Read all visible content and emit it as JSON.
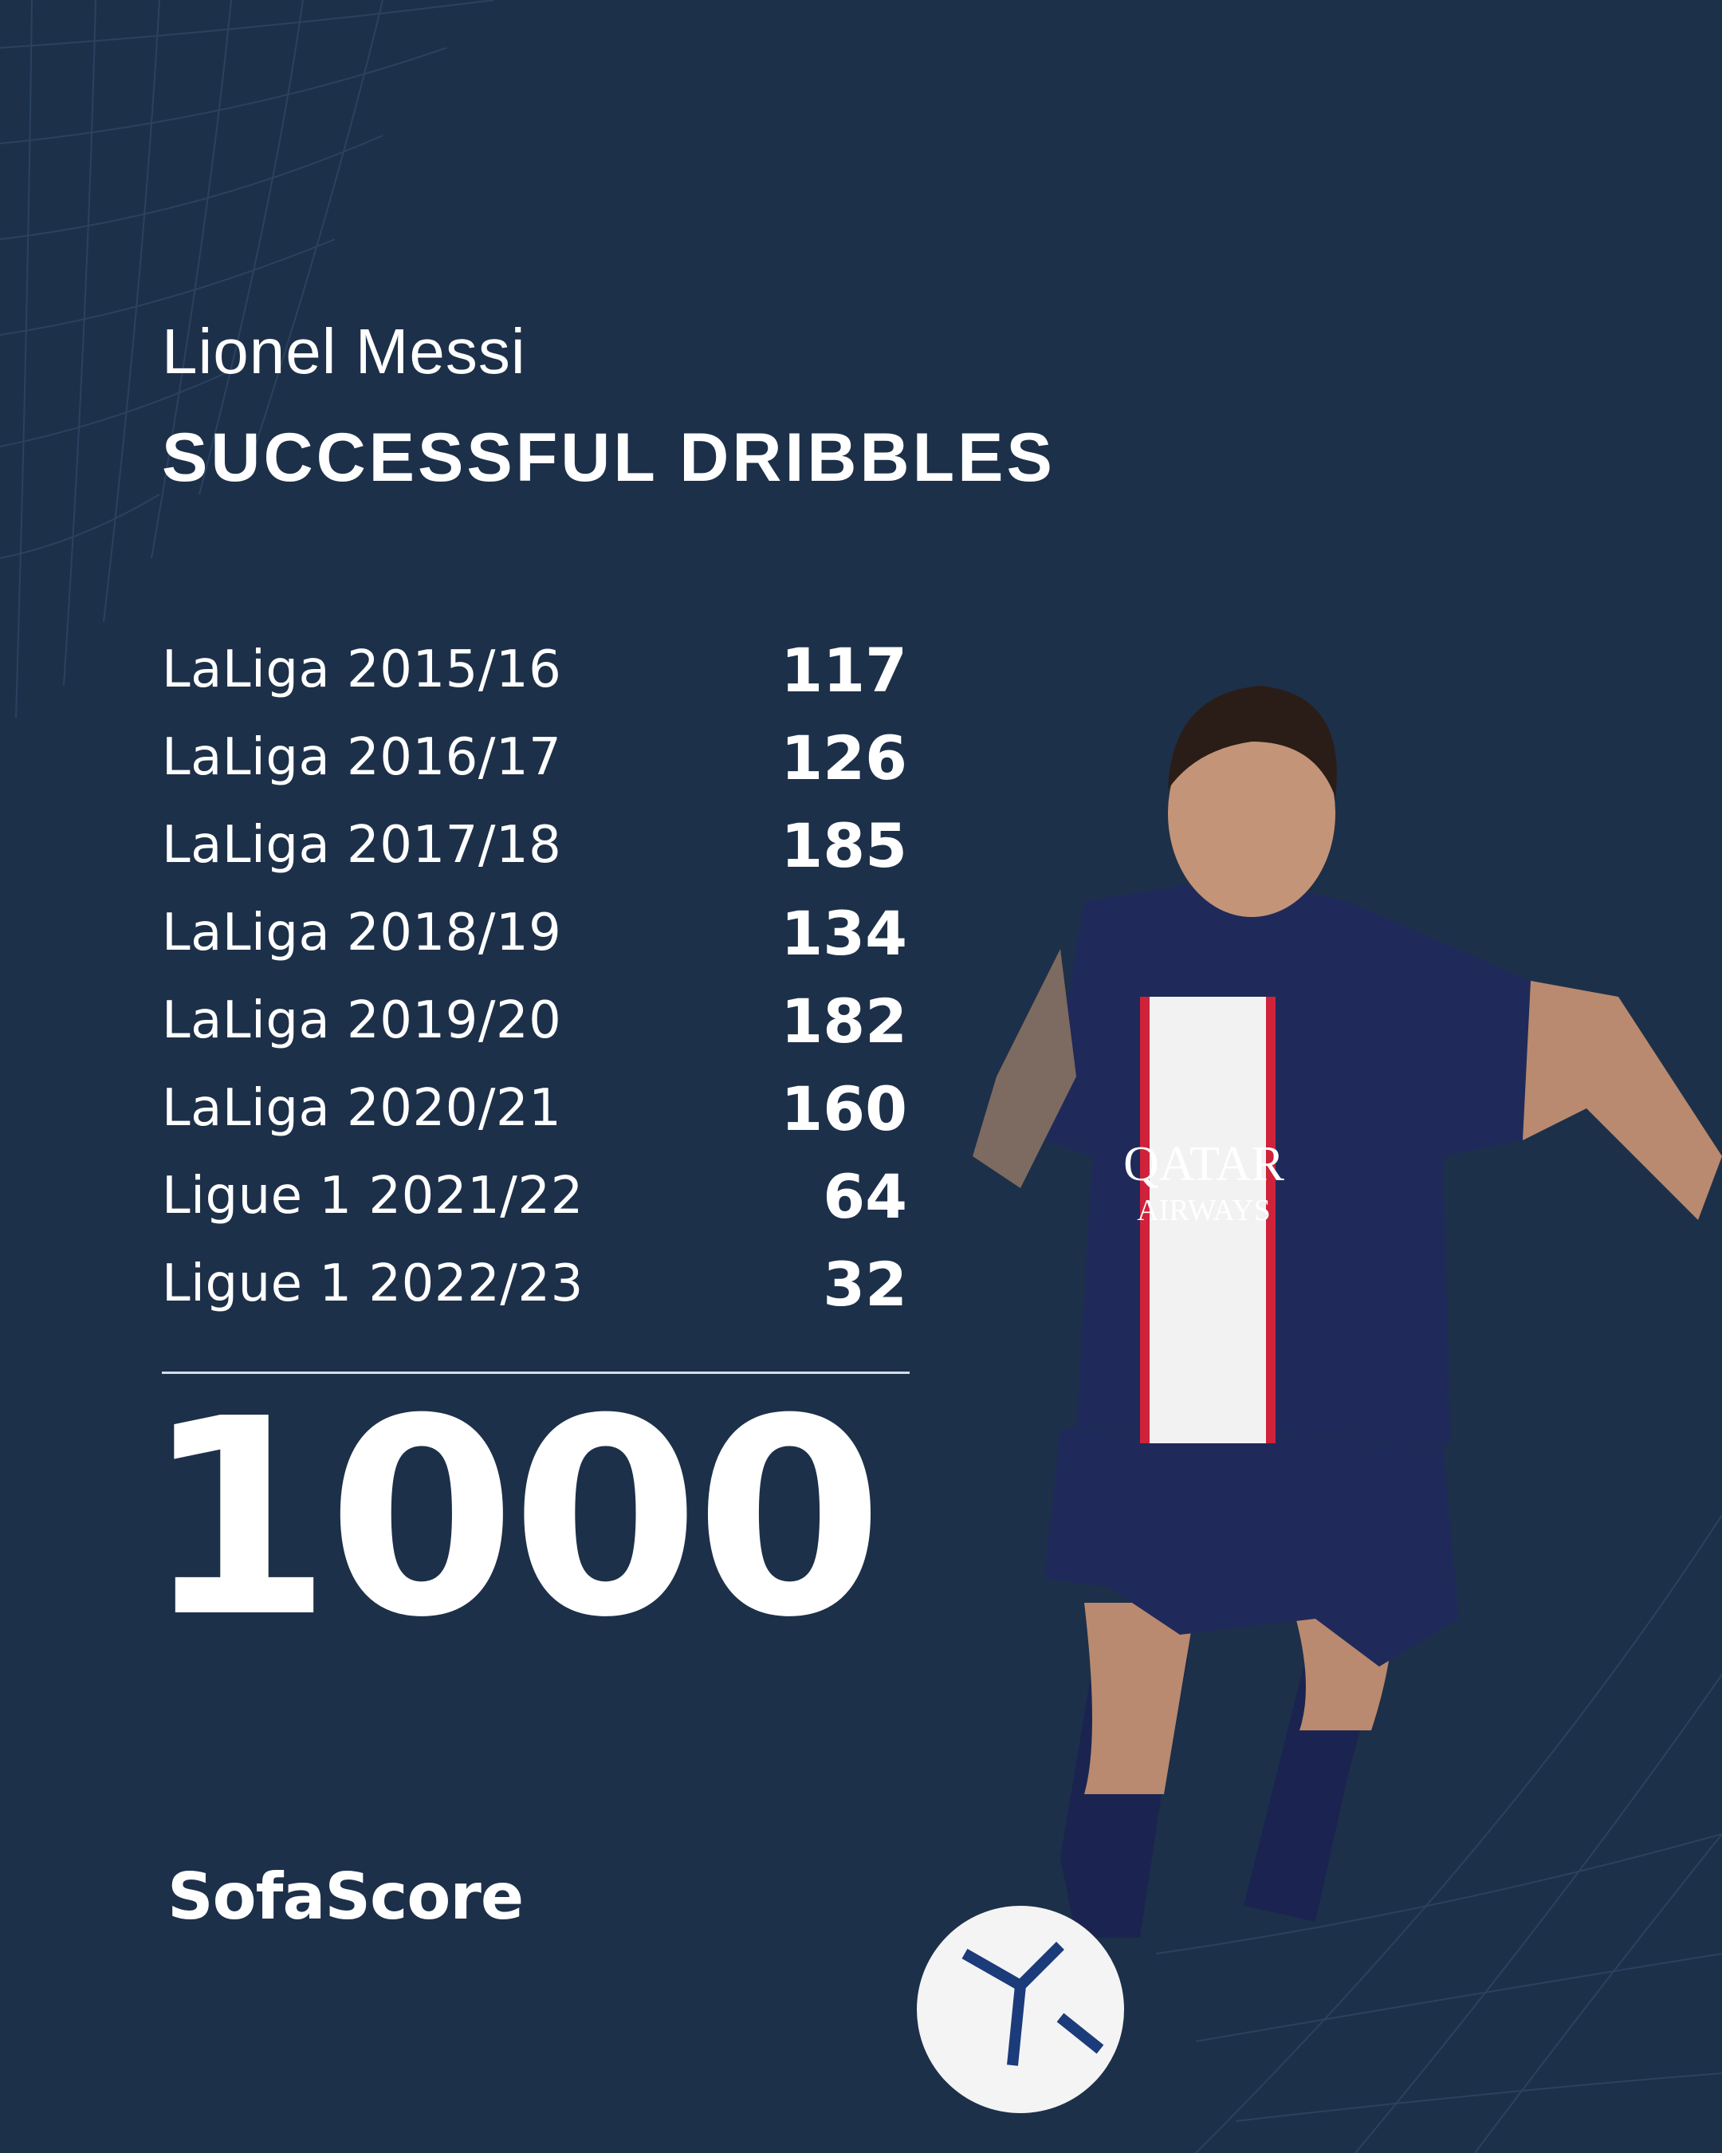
{
  "header": {
    "player_name": "Lionel Messi",
    "title": "SUCCESSFUL DRIBBLES"
  },
  "stats": [
    {
      "label": "LaLiga 2015/16",
      "value": "117"
    },
    {
      "label": "LaLiga 2016/17",
      "value": "126"
    },
    {
      "label": "LaLiga 2017/18",
      "value": "185"
    },
    {
      "label": "LaLiga 2018/19",
      "value": "134"
    },
    {
      "label": "LaLiga 2019/20",
      "value": "182"
    },
    {
      "label": "LaLiga 2020/21",
      "value": "160"
    },
    {
      "label": "Ligue 1 2021/22",
      "value": "64"
    },
    {
      "label": "Ligue 1 2022/23",
      "value": "32"
    }
  ],
  "total": "1000",
  "brand": "SofaScore",
  "photo": {
    "jersey_sponsor": "QATAR AIRWAYS",
    "colors": {
      "background": "#1d3049",
      "jersey": "#1f2a5a",
      "stripe_red": "#d0223a"
    }
  }
}
